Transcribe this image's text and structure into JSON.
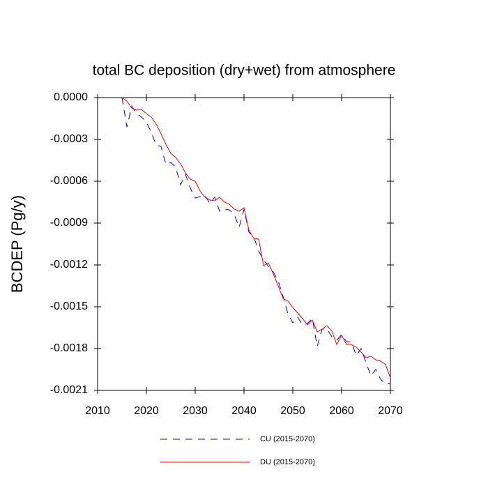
{
  "chart_data": {
    "type": "line",
    "title": "total BC deposition (dry+wet) from atmosphere",
    "y_label": "BCDEP  (Pg/y)",
    "x": [
      2015,
      2016,
      2017,
      2018,
      2019,
      2020,
      2021,
      2022,
      2023,
      2024,
      2025,
      2026,
      2027,
      2028,
      2029,
      2030,
      2031,
      2032,
      2033,
      2034,
      2035,
      2036,
      2037,
      2038,
      2039,
      2040,
      2041,
      2042,
      2043,
      2044,
      2045,
      2046,
      2047,
      2048,
      2049,
      2050,
      2051,
      2052,
      2053,
      2054,
      2055,
      2056,
      2057,
      2058,
      2059,
      2060,
      2061,
      2062,
      2063,
      2064,
      2065,
      2066,
      2067,
      2068,
      2069,
      2070
    ],
    "series": [
      {
        "name": "CU (2015-2070)",
        "color": "#0000ff",
        "dash": "dashed",
        "values": [
          0,
          -0.00021,
          -6e-05,
          -0.000115,
          -0.00014,
          -0.000175,
          -0.00025,
          -0.00034,
          -0.00035,
          -0.00048,
          -0.000465,
          -0.0005,
          -0.000625,
          -0.00055,
          -0.00065,
          -0.00072,
          -0.00071,
          -0.0007,
          -0.00076,
          -0.000715,
          -0.000815,
          -0.0008,
          -0.000805,
          -0.00084,
          -0.00093,
          -0.0008,
          -0.000965,
          -0.001,
          -0.0011,
          -0.001165,
          -0.00121,
          -0.00125,
          -0.001315,
          -0.001425,
          -0.00155,
          -0.001615,
          -0.001575,
          -0.00163,
          -0.00162,
          -0.001585,
          -0.001785,
          -0.00166,
          -0.00166,
          -0.001715,
          -0.00174,
          -0.0017,
          -0.00175,
          -0.001755,
          -0.00185,
          -0.0018,
          -0.0019,
          -0.001995,
          -0.00195,
          -0.00202,
          -0.002055,
          -0.00205
        ]
      },
      {
        "name": "DU (2015-2070)",
        "color": "#ff0000",
        "dash": "solid",
        "values": [
          0,
          -2.5e-05,
          -7.5e-05,
          -9e-05,
          -8.5e-05,
          -0.000115,
          -0.00014,
          -0.00019,
          -0.00026,
          -0.000335,
          -0.0004,
          -0.00043,
          -0.000475,
          -0.00054,
          -0.000585,
          -0.0006,
          -0.00067,
          -0.000715,
          -0.000735,
          -0.00074,
          -0.000715,
          -0.00075,
          -0.000765,
          -0.0008,
          -0.000815,
          -0.00079,
          -0.00095,
          -0.00101,
          -0.001015,
          -0.001205,
          -0.001185,
          -0.001265,
          -0.00135,
          -0.00144,
          -0.00146,
          -0.001505,
          -0.001545,
          -0.001585,
          -0.00163,
          -0.001595,
          -0.00168,
          -0.00166,
          -0.001635,
          -0.001675,
          -0.00177,
          -0.001705,
          -0.00177,
          -0.00177,
          -0.00179,
          -0.001825,
          -0.001865,
          -0.001855,
          -0.00188,
          -0.00189,
          -0.001915,
          -0.00201
        ]
      }
    ],
    "xlim": [
      2010,
      2070
    ],
    "xticks": [
      2010,
      2020,
      2030,
      2040,
      2050,
      2060,
      2070
    ],
    "ylim": [
      -0.0021,
      0
    ],
    "yticks": [
      {
        "value": 0,
        "label": "0.0000"
      },
      -0.0003,
      -0.0006,
      -0.0009,
      -0.0012,
      -0.0015,
      -0.0018,
      -0.0021
    ],
    "grid": false
  }
}
